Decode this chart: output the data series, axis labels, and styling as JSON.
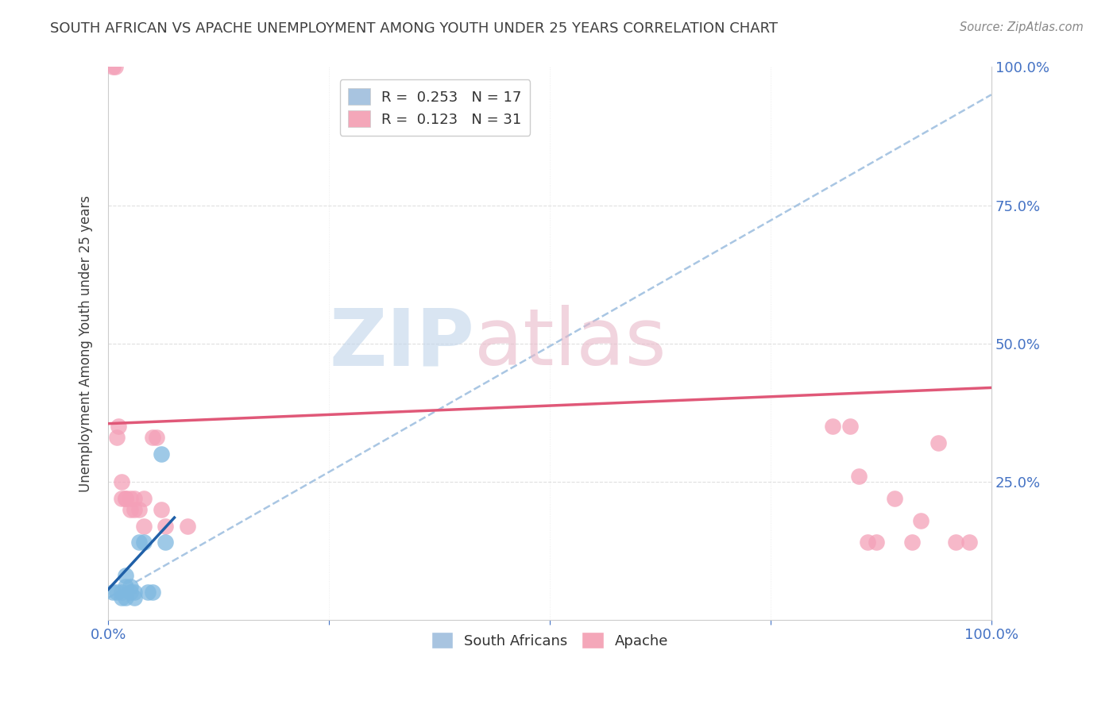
{
  "title": "SOUTH AFRICAN VS APACHE UNEMPLOYMENT AMONG YOUTH UNDER 25 YEARS CORRELATION CHART",
  "source": "Source: ZipAtlas.com",
  "ylabel": "Unemployment Among Youth under 25 years",
  "south_africans": {
    "scatter_color": "#7eb8e0",
    "trend_color": "#2060a8",
    "R": 0.253,
    "N": 17,
    "x": [
      0.005,
      0.01,
      0.015,
      0.015,
      0.02,
      0.02,
      0.02,
      0.025,
      0.025,
      0.03,
      0.03,
      0.035,
      0.04,
      0.045,
      0.05,
      0.06,
      0.065
    ],
    "y": [
      0.05,
      0.05,
      0.04,
      0.05,
      0.04,
      0.06,
      0.08,
      0.05,
      0.06,
      0.04,
      0.05,
      0.14,
      0.14,
      0.05,
      0.05,
      0.3,
      0.14
    ]
  },
  "apache": {
    "scatter_color": "#f4a0b8",
    "trend_color": "#e05878",
    "R": 0.123,
    "N": 31,
    "x": [
      0.005,
      0.008,
      0.01,
      0.012,
      0.015,
      0.015,
      0.02,
      0.02,
      0.025,
      0.025,
      0.03,
      0.03,
      0.035,
      0.04,
      0.04,
      0.05,
      0.055,
      0.06,
      0.065,
      0.09,
      0.82,
      0.84,
      0.85,
      0.86,
      0.87,
      0.89,
      0.91,
      0.92,
      0.94,
      0.96,
      0.975
    ],
    "y": [
      1.0,
      1.0,
      0.33,
      0.35,
      0.22,
      0.25,
      0.22,
      0.22,
      0.2,
      0.22,
      0.2,
      0.22,
      0.2,
      0.17,
      0.22,
      0.33,
      0.33,
      0.2,
      0.17,
      0.17,
      0.35,
      0.35,
      0.26,
      0.14,
      0.14,
      0.22,
      0.14,
      0.18,
      0.32,
      0.14,
      0.14
    ]
  },
  "dashed_line": {
    "color": "#a0c0e0",
    "x0": 0.0,
    "y0": 0.04,
    "x1": 1.0,
    "y1": 0.95
  },
  "pink_trend_line": {
    "x0": 0.0,
    "y0": 0.355,
    "x1": 1.0,
    "y1": 0.42
  },
  "blue_trend_line": {
    "x0": 0.0,
    "y0": 0.055,
    "x1": 0.075,
    "y1": 0.185
  },
  "xlim": [
    0.0,
    1.0
  ],
  "ylim": [
    0.0,
    1.0
  ],
  "background_color": "#ffffff",
  "grid_color": "#d8d8d8",
  "axis_color": "#4472c4",
  "title_color": "#404040",
  "source_color": "#888888",
  "legend_sa_color": "#a8c4e0",
  "legend_ap_color": "#f4a7b9",
  "watermark_zip_color": "#c0d4ea",
  "watermark_atlas_color": "#e8b8c8"
}
